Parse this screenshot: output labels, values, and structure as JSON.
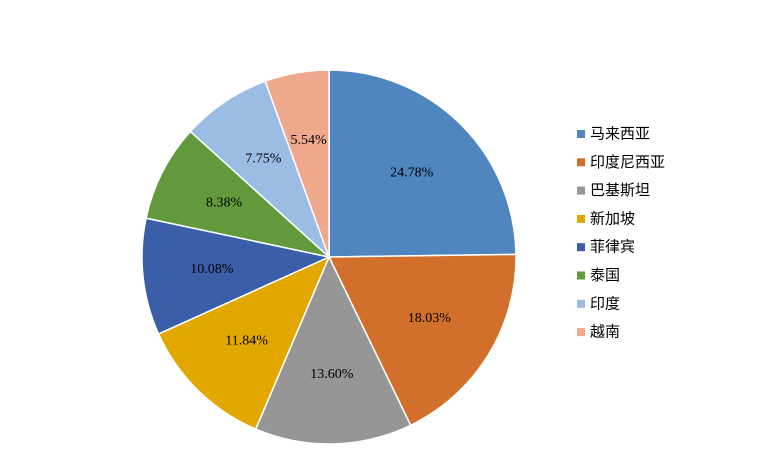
{
  "chart_data": {
    "type": "pie",
    "categories": [
      "马来西亚",
      "印度尼西亚",
      "巴基斯坦",
      "新加坡",
      "菲律宾",
      "泰国",
      "印度",
      "越南"
    ],
    "values": [
      24.78,
      18.03,
      13.6,
      11.84,
      10.08,
      8.38,
      7.75,
      5.54
    ],
    "value_labels": [
      "24.78%",
      "18.03%",
      "13.60%",
      "11.84%",
      "10.08%",
      "8.38%",
      "7.75%",
      "5.54%"
    ],
    "colors": [
      "#4f86c0",
      "#d26f2b",
      "#969696",
      "#e3a800",
      "#3a5ea8",
      "#62993c",
      "#9cbde3",
      "#efa88c"
    ],
    "legend": "right"
  }
}
